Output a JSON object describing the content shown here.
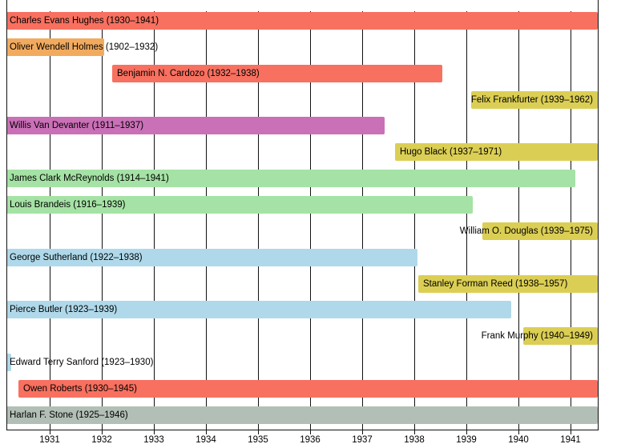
{
  "chart_data": {
    "type": "bar",
    "variant": "horizontal-timeline",
    "grid": true,
    "xlim": [
      1930.17,
      1941.52
    ],
    "axis": {
      "years": [
        1931,
        1932,
        1933,
        1934,
        1935,
        1936,
        1937,
        1938,
        1939,
        1940,
        1941
      ]
    },
    "palette": {
      "salmon": "#f8705f",
      "orange": "#f2ab5e",
      "yellow": "#dbce54",
      "magenta": "#ca70b7",
      "green": "#a5e2a5",
      "blue": "#afd9ea",
      "gray": "#b2bfb6"
    },
    "line_color": "#111111",
    "bars": [
      {
        "id": "hughes",
        "label": "Charles Evans Hughes (1930–1941)",
        "start": 1930.17,
        "end": 1941.52,
        "color": "salmon",
        "label_align": "plot-left"
      },
      {
        "id": "holmes",
        "label": "Oliver Wendell Holmes (1902–1932)",
        "start": 1930.17,
        "end": 1932.05,
        "color": "orange",
        "label_align": "plot-left"
      },
      {
        "id": "cardozo",
        "label": "Benjamin N. Cardozo (1932–1938)",
        "start": 1932.2,
        "end": 1938.54,
        "color": "salmon",
        "label_align": "bar-start"
      },
      {
        "id": "frankfurter",
        "label": "Felix Frankfurter (1939–1962)",
        "start": 1939.09,
        "end": 1941.52,
        "color": "yellow",
        "label_align": "plot-right"
      },
      {
        "id": "van-devanter",
        "label": "Willis Van Devanter (1911–1937)",
        "start": 1930.17,
        "end": 1937.43,
        "color": "magenta",
        "label_align": "plot-left"
      },
      {
        "id": "black",
        "label": "Hugo Black (1937–1971)",
        "start": 1937.63,
        "end": 1941.52,
        "color": "yellow",
        "label_align": "bar-start"
      },
      {
        "id": "mcreynolds",
        "label": "James Clark McReynolds (1914–1941)",
        "start": 1930.17,
        "end": 1941.09,
        "color": "green",
        "label_align": "plot-left"
      },
      {
        "id": "brandeis",
        "label": "Louis Brandeis (1916–1939)",
        "start": 1930.17,
        "end": 1939.12,
        "color": "green",
        "label_align": "plot-left"
      },
      {
        "id": "douglas",
        "label": "William O. Douglas (1939–1975)",
        "start": 1939.31,
        "end": 1941.52,
        "color": "yellow",
        "label_align": "plot-right"
      },
      {
        "id": "sutherland",
        "label": "George Sutherland (1922–1938)",
        "start": 1930.17,
        "end": 1938.06,
        "color": "blue",
        "label_align": "plot-left"
      },
      {
        "id": "reed",
        "label": "Stanley Forman Reed (1938–1957)",
        "start": 1938.08,
        "end": 1941.52,
        "color": "yellow",
        "label_align": "bar-start"
      },
      {
        "id": "butler",
        "label": "Pierce Butler (1923–1939)",
        "start": 1930.17,
        "end": 1939.86,
        "color": "blue",
        "label_align": "plot-left"
      },
      {
        "id": "murphy",
        "label": "Frank Murphy (1940–1949)",
        "start": 1940.09,
        "end": 1941.52,
        "color": "yellow",
        "label_align": "plot-right"
      },
      {
        "id": "sanford",
        "label": "Edward Terry Sanford (1923–1930)",
        "start": 1930.17,
        "end": 1930.26,
        "color": "blue",
        "label_align": "plot-left"
      },
      {
        "id": "roberts",
        "label": "Owen Roberts (1930–1945)",
        "start": 1930.4,
        "end": 1941.52,
        "color": "salmon",
        "label_align": "bar-start"
      },
      {
        "id": "stone",
        "label": "Harlan F. Stone (1925–1946)",
        "start": 1930.17,
        "end": 1941.52,
        "color": "gray",
        "label_align": "plot-left"
      }
    ]
  }
}
